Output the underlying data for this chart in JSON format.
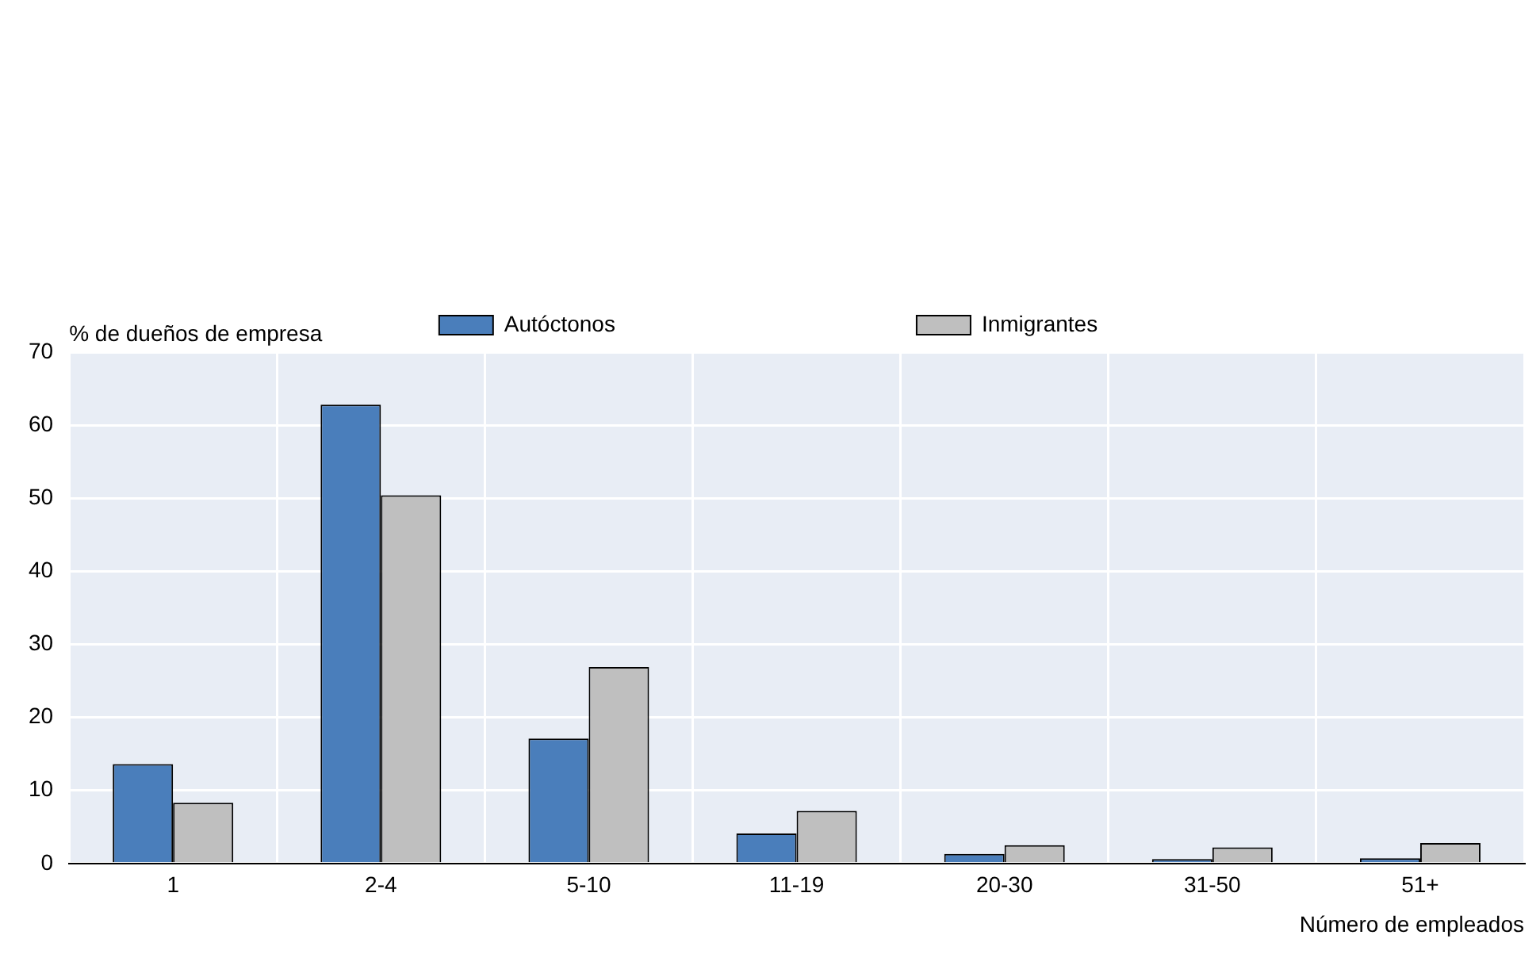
{
  "chart_data": {
    "type": "bar",
    "ylabel": "% de dueños de empresa",
    "xlabel": "Número de empleados",
    "categories": [
      "1",
      "2-4",
      "5-10",
      "11-19",
      "20-30",
      "31-50",
      "51+"
    ],
    "series": [
      {
        "name": "Autóctonos",
        "color": "#4a7ebb",
        "values": [
          13.6,
          62.8,
          17.1,
          4.1,
          1.3,
          0.6,
          0.7
        ]
      },
      {
        "name": "Inmigrantes",
        "color": "#bfbfbf",
        "values": [
          8.3,
          50.4,
          26.9,
          7.2,
          2.5,
          2.2,
          2.8
        ]
      }
    ],
    "ylim": [
      0,
      70
    ],
    "yticks": [
      0,
      10,
      20,
      30,
      40,
      50,
      60,
      70
    ],
    "grid": true,
    "legend": "top"
  }
}
